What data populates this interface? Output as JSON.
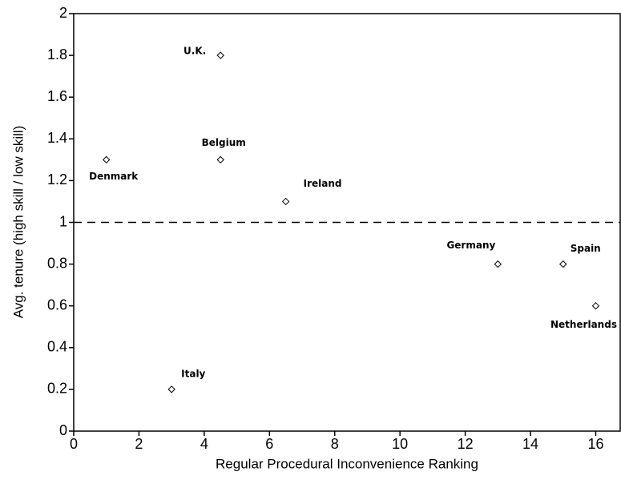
{
  "chart_data": {
    "type": "scatter",
    "xlabel": "Regular Procedural Inconvenience Ranking",
    "ylabel": "Avg. tenure (high skill / low skill)",
    "series": [
      {
        "labels": [
          "Denmark",
          "U.K.",
          "Belgium",
          "Ireland",
          "Italy",
          "Germany",
          "Spain",
          "Netherlands"
        ],
        "x": [
          1,
          4.5,
          4.5,
          6.5,
          3,
          13,
          15,
          16
        ],
        "values": [
          1.3,
          1.8,
          1.3,
          1.1,
          0.2,
          0.8,
          0.8,
          0.6
        ],
        "color": "#000000"
      }
    ],
    "reference_line": 1,
    "xlim": [
      0,
      16.75
    ],
    "xticks": [
      0,
      2,
      4,
      6,
      8,
      10,
      12,
      14,
      16
    ],
    "ylim": [
      0,
      2
    ],
    "yticks": [
      0,
      0.2,
      0.4,
      0.6,
      0.8,
      1,
      1.2,
      1.4,
      1.6,
      1.8,
      2
    ]
  }
}
